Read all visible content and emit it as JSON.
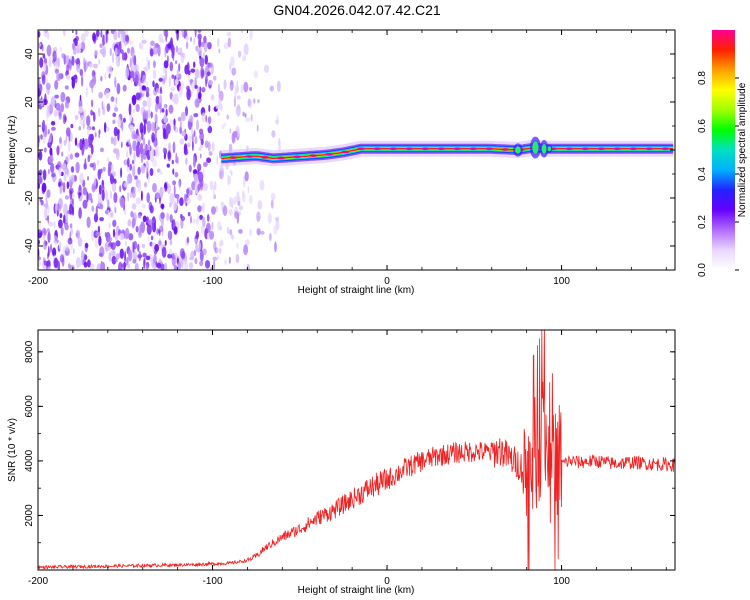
{
  "chart_data": [
    {
      "type": "heatmap",
      "title": "GN04.2026.042.07.42.C21",
      "xlabel": "Height of straight line (km)",
      "ylabel": "Frequency (Hz)",
      "xlim": [
        -200,
        165
      ],
      "ylim": [
        -50,
        50
      ],
      "xticks": [
        -200,
        -100,
        0,
        100
      ],
      "yticks": [
        40,
        20,
        0,
        -20,
        -40
      ],
      "noise_region_km": [
        -200,
        -78
      ],
      "signal_start_km": -95,
      "ridge": {
        "x_km": [
          -95,
          -85,
          -75,
          -65,
          -55,
          -45,
          -35,
          -25,
          -15,
          -5,
          5,
          20,
          40,
          60,
          75,
          85,
          90,
          95,
          110,
          130,
          150,
          165
        ],
        "freq_hz": [
          -3.5,
          -3,
          -2.5,
          -3.5,
          -3,
          -2.5,
          -2,
          -1,
          0.5,
          0.5,
          0.5,
          0.5,
          0.5,
          0.5,
          0,
          1,
          0.5,
          0.5,
          0.5,
          0.5,
          0.5,
          0.5
        ]
      },
      "colorbar": {
        "label": "Normalized spectral amplitude",
        "range": [
          0,
          1
        ],
        "ticks": [
          "0.0",
          "0.2",
          "0.4",
          "0.6",
          "0.8"
        ],
        "colors": [
          "#ffffff",
          "#e9d6ff",
          "#b36bff",
          "#6600ff",
          "#2222ff",
          "#00b0ff",
          "#00e0c0",
          "#00ff00",
          "#a0ff00",
          "#ffff00",
          "#ffa000",
          "#ff2000",
          "#ff0090"
        ]
      }
    },
    {
      "type": "line",
      "xlabel": "Height of straight line (km)",
      "ylabel": "SNR (10 * v/v)",
      "xlim": [
        -200,
        165
      ],
      "ylim": [
        0,
        8800
      ],
      "xticks": [
        -200,
        -100,
        0,
        100
      ],
      "yticks": [
        2000,
        4000,
        6000,
        8000
      ],
      "series": [
        {
          "name": "SNR",
          "color": "#ee2222",
          "x": [
            -200,
            -150,
            -110,
            -90,
            -80,
            -75,
            -70,
            -60,
            -50,
            -40,
            -30,
            -20,
            -10,
            0,
            10,
            20,
            30,
            40,
            50,
            60,
            65,
            70,
            75,
            80,
            85,
            88,
            90,
            92,
            94,
            96,
            98,
            100,
            105,
            110,
            120,
            130,
            140,
            150,
            165
          ],
          "y": [
            100,
            150,
            200,
            250,
            350,
            500,
            800,
            1200,
            1500,
            1900,
            2200,
            2600,
            3000,
            3300,
            3700,
            4000,
            4200,
            4300,
            4350,
            4300,
            4400,
            4100,
            3900,
            3600,
            4200,
            4800,
            5500,
            4000,
            6000,
            3500,
            4200,
            3900,
            4000,
            3950,
            4000,
            3900,
            3950,
            3900,
            3850
          ]
        }
      ]
    }
  ]
}
